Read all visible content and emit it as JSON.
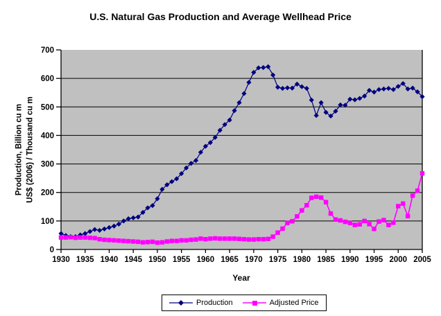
{
  "title": "U.S. Natural Gas Production and Average Wellhead Price",
  "axes": {
    "y_label_line1": "Production, Billion cu m",
    "y_label_line2": "US$ (2006) / Thousand cu m",
    "x_label": "Year"
  },
  "colors": {
    "plot_background": "#C0C0C0",
    "gridline": "#000000",
    "axis": "#000000",
    "production": "#000080",
    "adjusted_price": "#FF00FF"
  },
  "chart_data": {
    "type": "line",
    "title": "U.S. Natural Gas Production and Average Wellhead Price",
    "xlabel": "Year",
    "ylabel": "Production, Billion cu m / US$ (2006) / Thousand cu m",
    "xlim": [
      1930,
      2005
    ],
    "ylim": [
      0,
      700
    ],
    "y_ticks": [
      0,
      100,
      200,
      300,
      400,
      500,
      600,
      700
    ],
    "x_ticks": [
      1930,
      1935,
      1940,
      1945,
      1950,
      1955,
      1960,
      1965,
      1970,
      1975,
      1980,
      1985,
      1990,
      1995,
      2000,
      2005
    ],
    "grid": "horizontal",
    "legend_position": "bottom",
    "plot_background": "#C0C0C0",
    "x_start": 1930,
    "x_step": 1,
    "series": [
      {
        "name": "Production",
        "color": "#000080",
        "marker": "diamond",
        "values": [
          56,
          49,
          45,
          45,
          51,
          56,
          63,
          70,
          67,
          72,
          77,
          82,
          89,
          100,
          108,
          111,
          114,
          130,
          146,
          154,
          178,
          211,
          227,
          238,
          248,
          266,
          286,
          302,
          312,
          341,
          362,
          375,
          393,
          418,
          438,
          454,
          487,
          515,
          547,
          586,
          621,
          637,
          638,
          641,
          612,
          569,
          565,
          567,
          566,
          580,
          571,
          565,
          524,
          470,
          515,
          481,
          468,
          485,
          507,
          506,
          527,
          525,
          530,
          538,
          558,
          552,
          561,
          563,
          565,
          561,
          572,
          582,
          563,
          566,
          553,
          536
        ]
      },
      {
        "name": "Adjusted Price",
        "color": "#FF00FF",
        "marker": "square",
        "values": [
          42,
          42,
          43,
          41,
          42,
          42,
          41,
          40,
          36,
          34,
          33,
          32,
          31,
          30,
          29,
          28,
          27,
          25,
          26,
          27,
          24,
          25,
          28,
          30,
          30,
          32,
          32,
          34,
          35,
          38,
          36,
          38,
          39,
          38,
          38,
          38,
          38,
          37,
          36,
          35,
          35,
          36,
          36,
          37,
          45,
          59,
          73,
          93,
          99,
          116,
          137,
          155,
          181,
          185,
          182,
          166,
          126,
          105,
          102,
          97,
          93,
          86,
          88,
          100,
          89,
          72,
          98,
          103,
          86,
          94,
          152,
          161,
          117,
          189,
          206,
          267
        ]
      }
    ]
  }
}
